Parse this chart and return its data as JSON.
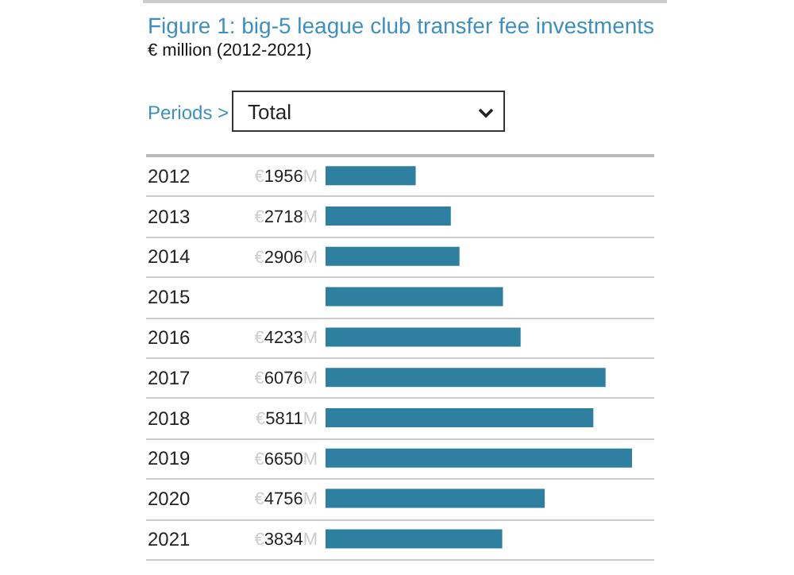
{
  "chart_data": {
    "type": "bar",
    "orientation": "horizontal",
    "title": "Figure 1: big-5 league club transfer fee investments",
    "subtitle": "€ million (2012-2021)",
    "annotations": [
      "Periods >",
      "Total"
    ],
    "categories": [
      "2012",
      "2013",
      "2014",
      "2015",
      "2016",
      "2017",
      "2018",
      "2019",
      "2020",
      "2021"
    ],
    "values": [
      1956,
      2718,
      2906,
      3850,
      4233,
      6076,
      5811,
      6650,
      4756,
      3834
    ],
    "value_labels": [
      "€1956M",
      "€2718M",
      "€2906M",
      null,
      "€4233M",
      "€6076M",
      "€5811M",
      "€6650M",
      "€4756M",
      "€3834M"
    ],
    "color": "#2e7fa0"
  }
}
